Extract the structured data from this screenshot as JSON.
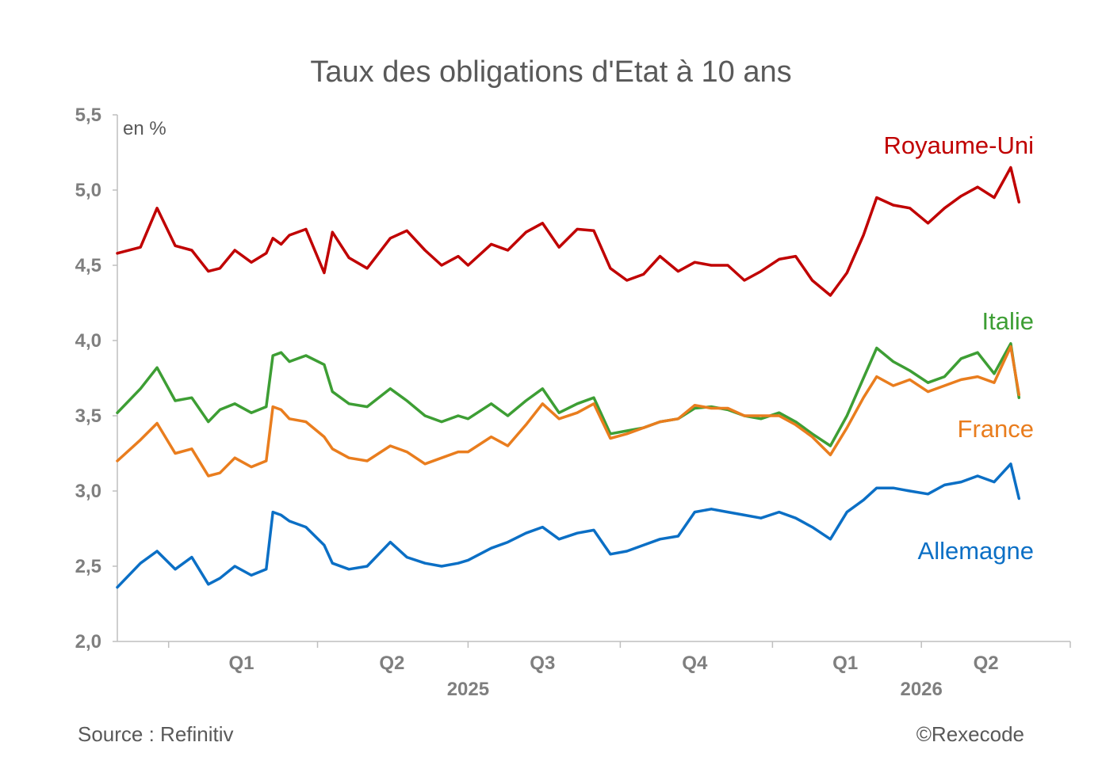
{
  "footer": {
    "source": "Source : Refinitiv",
    "credit": "©Rexecode"
  },
  "chart_data": {
    "type": "line",
    "title": "Taux des obligations d'Etat à 10 ans",
    "unit_label": "en %",
    "ylim": [
      2.0,
      5.5
    ],
    "yticks": [
      "2,0",
      "2,5",
      "3,0",
      "3,5",
      "4,0",
      "4,5",
      "5,0",
      "5,5"
    ],
    "x_range": [
      "2024-12-01",
      "2026-06-30"
    ],
    "quarter_labels": [
      {
        "label": "Q1",
        "date": "2025-02-14"
      },
      {
        "label": "Q2",
        "date": "2025-05-16"
      },
      {
        "label": "Q3",
        "date": "2025-08-15"
      },
      {
        "label": "Q4",
        "date": "2025-11-15"
      },
      {
        "label": "Q1",
        "date": "2026-02-14"
      },
      {
        "label": "Q2",
        "date": "2026-05-10"
      }
    ],
    "year_labels": [
      {
        "label": "2025",
        "date": "2025-07-01"
      },
      {
        "label": "2026",
        "date": "2026-04-01"
      }
    ],
    "grid": false,
    "x": [
      "2024-12-01",
      "2024-12-15",
      "2024-12-25",
      "2025-01-05",
      "2025-01-15",
      "2025-01-25",
      "2025-02-01",
      "2025-02-10",
      "2025-02-20",
      "2025-03-01",
      "2025-03-05",
      "2025-03-10",
      "2025-03-15",
      "2025-03-25",
      "2025-04-05",
      "2025-04-10",
      "2025-04-20",
      "2025-05-01",
      "2025-05-15",
      "2025-05-25",
      "2025-06-05",
      "2025-06-15",
      "2025-06-25",
      "2025-07-01",
      "2025-07-15",
      "2025-07-25",
      "2025-08-05",
      "2025-08-15",
      "2025-08-25",
      "2025-09-05",
      "2025-09-15",
      "2025-09-25",
      "2025-10-05",
      "2025-10-15",
      "2025-10-25",
      "2025-11-05",
      "2025-11-15",
      "2025-11-25",
      "2025-12-05",
      "2025-12-15",
      "2025-12-25",
      "2026-01-05",
      "2026-01-15",
      "2026-01-25",
      "2026-02-05",
      "2026-02-15",
      "2026-02-25",
      "2026-03-05",
      "2026-03-15",
      "2026-03-25",
      "2026-04-05",
      "2026-04-15",
      "2026-04-25",
      "2026-05-05",
      "2026-05-15",
      "2026-05-25",
      "2026-05-30"
    ],
    "series": [
      {
        "name": "Royaume-Uni",
        "color": "#c00000",
        "values": [
          4.58,
          4.62,
          4.88,
          4.63,
          4.6,
          4.46,
          4.48,
          4.6,
          4.52,
          4.58,
          4.68,
          4.64,
          4.7,
          4.74,
          4.45,
          4.72,
          4.55,
          4.48,
          4.68,
          4.73,
          4.6,
          4.5,
          4.56,
          4.5,
          4.64,
          4.6,
          4.72,
          4.78,
          4.62,
          4.74,
          4.73,
          4.48,
          4.4,
          4.44,
          4.56,
          4.46,
          4.52,
          4.5,
          4.5,
          4.4,
          4.46,
          4.54,
          4.56,
          4.4,
          4.3,
          4.45,
          4.7,
          4.95,
          4.9,
          4.88,
          4.78,
          4.88,
          4.96,
          5.02,
          4.95,
          5.15,
          4.92
        ]
      },
      {
        "name": "Italie",
        "color": "#3d9e34",
        "values": [
          3.52,
          3.68,
          3.82,
          3.6,
          3.62,
          3.46,
          3.54,
          3.58,
          3.52,
          3.56,
          3.9,
          3.92,
          3.86,
          3.9,
          3.84,
          3.66,
          3.58,
          3.56,
          3.68,
          3.6,
          3.5,
          3.46,
          3.5,
          3.48,
          3.58,
          3.5,
          3.6,
          3.68,
          3.52,
          3.58,
          3.62,
          3.38,
          3.4,
          3.42,
          3.46,
          3.48,
          3.55,
          3.56,
          3.54,
          3.5,
          3.48,
          3.52,
          3.46,
          3.38,
          3.3,
          3.5,
          3.75,
          3.95,
          3.86,
          3.8,
          3.72,
          3.76,
          3.88,
          3.92,
          3.78,
          3.98,
          3.62
        ]
      },
      {
        "name": "France",
        "color": "#e97d1e",
        "values": [
          3.2,
          3.34,
          3.45,
          3.25,
          3.28,
          3.1,
          3.12,
          3.22,
          3.16,
          3.2,
          3.56,
          3.54,
          3.48,
          3.46,
          3.36,
          3.28,
          3.22,
          3.2,
          3.3,
          3.26,
          3.18,
          3.22,
          3.26,
          3.26,
          3.36,
          3.3,
          3.44,
          3.58,
          3.48,
          3.52,
          3.58,
          3.35,
          3.38,
          3.42,
          3.46,
          3.48,
          3.57,
          3.55,
          3.55,
          3.5,
          3.5,
          3.5,
          3.44,
          3.36,
          3.24,
          3.42,
          3.62,
          3.76,
          3.7,
          3.74,
          3.66,
          3.7,
          3.74,
          3.76,
          3.72,
          3.96,
          3.64
        ]
      },
      {
        "name": "Allemagne",
        "color": "#0b6fc5",
        "values": [
          2.36,
          2.52,
          2.6,
          2.48,
          2.56,
          2.38,
          2.42,
          2.5,
          2.44,
          2.48,
          2.86,
          2.84,
          2.8,
          2.76,
          2.64,
          2.52,
          2.48,
          2.5,
          2.66,
          2.56,
          2.52,
          2.5,
          2.52,
          2.54,
          2.62,
          2.66,
          2.72,
          2.76,
          2.68,
          2.72,
          2.74,
          2.58,
          2.6,
          2.64,
          2.68,
          2.7,
          2.86,
          2.88,
          2.86,
          2.84,
          2.82,
          2.86,
          2.82,
          2.76,
          2.68,
          2.86,
          2.94,
          3.02,
          3.02,
          3.0,
          2.98,
          3.04,
          3.06,
          3.1,
          3.06,
          3.18,
          2.95
        ]
      }
    ]
  }
}
